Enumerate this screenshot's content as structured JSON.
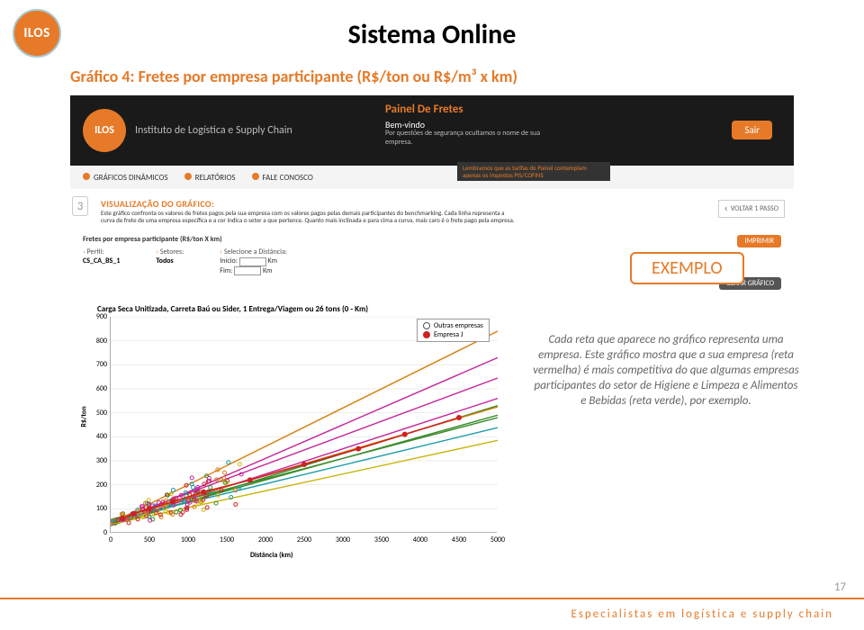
{
  "logo_text": "ILOS",
  "main_title": "Sistema Online",
  "subtitle": "Gráfico 4: Fretes por empresa participante (R$/ton ou R$/m³ x km)",
  "banner": {
    "brand": "Instituto de Logística e Supply Chain",
    "panel_title": "Painel De Fretes",
    "welcome": "Bem-vindo",
    "welcome_sub": "Por questões de segurança ocultamos o nome de sua empresa.",
    "sair": "Sair"
  },
  "nav": {
    "items": [
      "GRÁFICOS DINÂMICOS",
      "RELATÓRIOS",
      "FALE CONOSCO"
    ],
    "notice": "Lembramos que as tarifas do Painel contemplam apenas os impostos PIS/COFINS"
  },
  "step": {
    "num": "3",
    "title": "VISUALIZAÇÃO DO GRÁFICO:",
    "text": "Este gráfico confronta os valores de fretes pagos pela sua empresa com os valores pagos pelas demais participantes do benchmarking. Cada linha representa a curva de frete de uma empresa específica e a cor indica o setor a que pertence. Quanto mais inclinada e para cima a curva, mais caro é o frete pago pela empresa.",
    "voltar": "VOLTAR 1 PASSO"
  },
  "filter": {
    "title": "Fretes por empresa participante (R$/ton X km)",
    "imprimir": "IMPRIMIR",
    "perfil_lbl": "Perfil:",
    "perfil_val": "CS_CA_BS_1",
    "setores_lbl": "Setores:",
    "setores_val": "Todos",
    "dist_lbl": "Selecione a Distância:",
    "inicio": "Início:",
    "fim": "Fim:",
    "km": "Km",
    "gerar": "GERAR GRÁFICO"
  },
  "exemplo_label": "EXEMPLO",
  "chart": {
    "title": "Carga Seca Unitizada, Carreta Baú ou Sider, 1 Entrega/Viagem ou 26 tons (0 - Km)",
    "yaxis_label": "R$/ton",
    "xaxis_label": "Distância (km)",
    "xlim": [
      0,
      5000
    ],
    "ylim": [
      0,
      900
    ],
    "xtick_step": 500,
    "ytick_step": 100,
    "xticks": [
      0,
      500,
      1000,
      1500,
      2000,
      2500,
      3000,
      3500,
      4000,
      4500,
      5000
    ],
    "yticks": [
      0,
      100,
      200,
      300,
      400,
      500,
      600,
      700,
      800,
      900
    ],
    "legend": [
      {
        "label": "Outras empresas",
        "marker": "hollow",
        "color": "#ffffff",
        "border": "#555555"
      },
      {
        "label": "Empresa J",
        "marker": "solid",
        "color": "#cc2222",
        "border": "#cc2222"
      }
    ],
    "colors": {
      "green": "#3a8a2a",
      "magenta": "#c4269b",
      "orange": "#d97c0a",
      "cyan": "#1a9aa8",
      "red": "#cc2222",
      "yellow": "#c9b50e",
      "grid": "#dddddd",
      "axis": "#888888"
    },
    "lines": [
      {
        "color": "#3a8a2a",
        "slope": 0.09,
        "intercept": 40
      },
      {
        "color": "#3a8a2a",
        "slope": 0.1,
        "intercept": 30
      },
      {
        "color": "#3a8a2a",
        "slope": 0.085,
        "intercept": 55
      },
      {
        "color": "#c4269b",
        "slope": 0.12,
        "intercept": 45
      },
      {
        "color": "#c4269b",
        "slope": 0.105,
        "intercept": 35
      },
      {
        "color": "#c4269b",
        "slope": 0.14,
        "intercept": 30
      },
      {
        "color": "#d97c0a",
        "slope": 0.095,
        "intercept": 50
      },
      {
        "color": "#d97c0a",
        "slope": 0.16,
        "intercept": 40
      },
      {
        "color": "#1a9aa8",
        "slope": 0.078,
        "intercept": 48
      },
      {
        "color": "#c9b50e",
        "slope": 0.07,
        "intercept": 35
      }
    ],
    "empresa_j": {
      "color": "#cc2222",
      "points": [
        [
          150,
          60
        ],
        [
          300,
          80
        ],
        [
          500,
          100
        ],
        [
          800,
          130
        ],
        [
          1200,
          170
        ],
        [
          1800,
          220
        ],
        [
          2500,
          285
        ],
        [
          3200,
          350
        ],
        [
          3800,
          410
        ],
        [
          4500,
          480
        ]
      ],
      "marker_r": 3
    },
    "scatter_cloud": {
      "n": 140,
      "x_mean": 600,
      "x_spread": 700,
      "y_base": 40,
      "colors": [
        "#3a8a2a",
        "#c4269b",
        "#d97c0a",
        "#1a9aa8",
        "#c9b50e",
        "#cc2222"
      ]
    }
  },
  "description": "Cada reta que aparece no gráfico representa uma empresa. Este gráfico mostra que a sua empresa (reta vermelha) é mais competitiva do que algumas empresas participantes do setor de Higiene e Limpeza e Alimentos e Bebidas (reta verde), por exemplo.",
  "footer": "Especialistas em logística e supply chain",
  "pagenum": "17"
}
